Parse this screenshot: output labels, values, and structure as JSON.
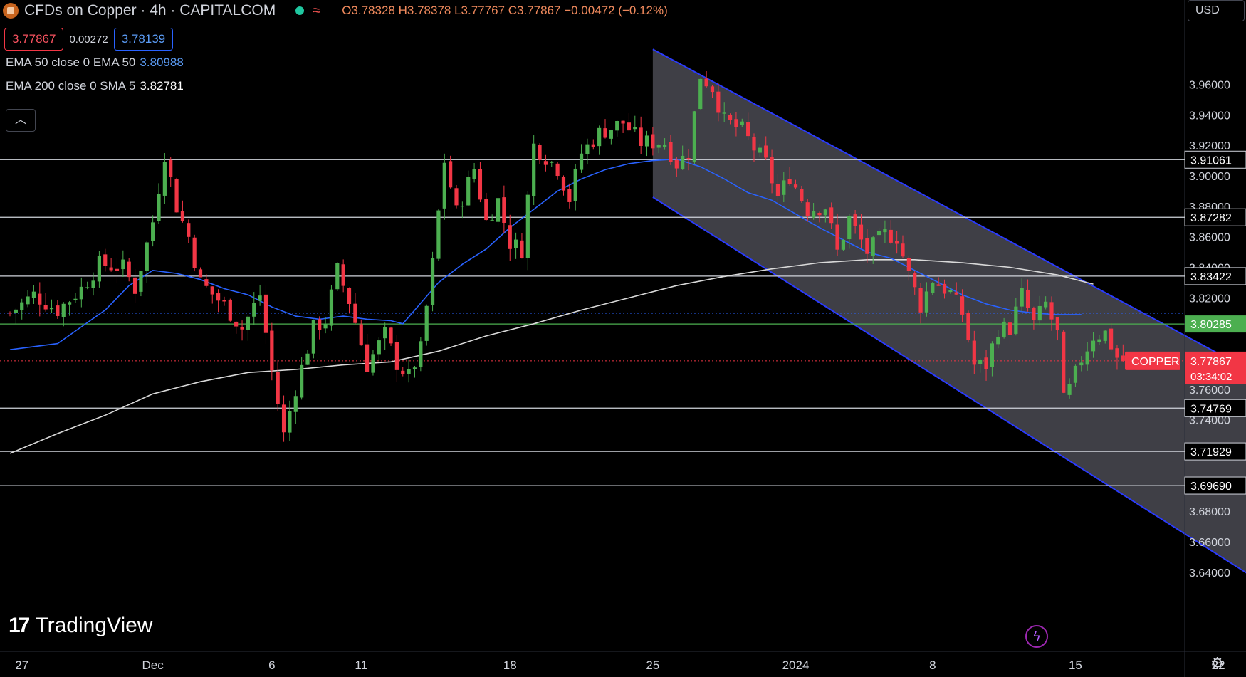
{
  "header": {
    "title": "CFDs on Copper · 4h · CAPITALCOM",
    "ohlc": {
      "open": "O3.78328",
      "high": "H3.78378",
      "low": "L3.77767",
      "close": "C3.77867",
      "change": "−0.00472 (−0.12%)"
    },
    "bid": "3.77867",
    "spread": "0.00272",
    "ask": "3.78139",
    "indicators": [
      {
        "label": "EMA 50 close 0 EMA 50",
        "value": "3.80988"
      },
      {
        "label": "EMA 200 close 0 SMA 5",
        "value": "3.82781"
      }
    ],
    "collapse_icon": "chevron-up-icon",
    "currency": "USD"
  },
  "branding": {
    "logo_mark": "17",
    "logo_text": "TradingView"
  },
  "icons": {
    "bolt": "lightning-icon",
    "settings": "gear-icon"
  },
  "colors": {
    "up": "#26a69a",
    "up_bright": "#4caf50",
    "down": "#f23645",
    "ema50": "#2962ff",
    "ema200": "#d9d9d9",
    "channel_fill": "#4a4a52",
    "channel_edge": "#2a3bff",
    "level_line": "#d1d4dc",
    "green_level": "#4caf50",
    "price_tag": "#f23645"
  },
  "chart_data": {
    "type": "candlestick",
    "timeframe": "4h",
    "ylim": [
      3.63,
      3.977
    ],
    "y_ticks": [
      "3.96000",
      "3.94000",
      "3.92000",
      "3.90000",
      "3.88000",
      "3.86000",
      "3.84000",
      "3.82000",
      "3.76000",
      "3.74000",
      "3.68000",
      "3.66000",
      "3.64000"
    ],
    "x_ticks": [
      {
        "label": "27",
        "bar": 2
      },
      {
        "label": "Dec",
        "bar": 24
      },
      {
        "label": "6",
        "bar": 44
      },
      {
        "label": "11",
        "bar": 59
      },
      {
        "label": "18",
        "bar": 84
      },
      {
        "label": "25",
        "bar": 108
      },
      {
        "label": "2024",
        "bar": 132
      },
      {
        "label": "8",
        "bar": 155
      },
      {
        "label": "15",
        "bar": 179
      },
      {
        "label": "22",
        "bar": 203
      }
    ],
    "total_bars": 211,
    "horizontal_levels": [
      {
        "value": 3.91061,
        "label": "3.91061"
      },
      {
        "value": 3.87282,
        "label": "3.87282"
      },
      {
        "value": 3.83422,
        "label": "3.83422"
      },
      {
        "value": 3.74769,
        "label": "3.74769"
      },
      {
        "value": 3.71929,
        "label": "3.71929"
      },
      {
        "value": 3.6969,
        "label": "3.69690"
      }
    ],
    "green_level": {
      "value": 3.80285,
      "label": "3.80285"
    },
    "dotted_levels": [
      3.80988,
      3.77867
    ],
    "last_price": {
      "value": 3.77867,
      "label": "3.77867",
      "countdown": "03:34:02",
      "symbol": "COPPER"
    },
    "channel": {
      "upper": [
        [
          108,
          3.983
        ],
        [
          208,
          3.773
        ]
      ],
      "lower": [
        [
          108,
          3.886
        ],
        [
          208,
          3.639
        ]
      ],
      "end_bar": 208
    },
    "anchors": [
      [
        0,
        3.81
      ],
      [
        4,
        3.822
      ],
      [
        8,
        3.812
      ],
      [
        12,
        3.826
      ],
      [
        15,
        3.842
      ],
      [
        19,
        3.84
      ],
      [
        21,
        3.826
      ],
      [
        24,
        3.87
      ],
      [
        26,
        3.915
      ],
      [
        28,
        3.88
      ],
      [
        30,
        3.86
      ],
      [
        32,
        3.83
      ],
      [
        36,
        3.815
      ],
      [
        39,
        3.8
      ],
      [
        42,
        3.822
      ],
      [
        44,
        3.772
      ],
      [
        46,
        3.73
      ],
      [
        48,
        3.761
      ],
      [
        51,
        3.8
      ],
      [
        53,
        3.805
      ],
      [
        55,
        3.838
      ],
      [
        57,
        3.818
      ],
      [
        60,
        3.776
      ],
      [
        63,
        3.796
      ],
      [
        65,
        3.777
      ],
      [
        67,
        3.768
      ],
      [
        69,
        3.786
      ],
      [
        71,
        3.842
      ],
      [
        73,
        3.91
      ],
      [
        75,
        3.876
      ],
      [
        78,
        3.905
      ],
      [
        80,
        3.87
      ],
      [
        82,
        3.884
      ],
      [
        84,
        3.856
      ],
      [
        86,
        3.852
      ],
      [
        88,
        3.92
      ],
      [
        92,
        3.905
      ],
      [
        94,
        3.885
      ],
      [
        96,
        3.915
      ],
      [
        99,
        3.928
      ],
      [
        103,
        3.935
      ],
      [
        106,
        3.922
      ],
      [
        110,
        3.922
      ],
      [
        112,
        3.908
      ],
      [
        114,
        3.915
      ],
      [
        116,
        3.966
      ],
      [
        118,
        3.958
      ],
      [
        120,
        3.936
      ],
      [
        123,
        3.93
      ],
      [
        125,
        3.918
      ],
      [
        127,
        3.908
      ],
      [
        129,
        3.886
      ],
      [
        131,
        3.9
      ],
      [
        134,
        3.878
      ],
      [
        137,
        3.88
      ],
      [
        139,
        3.85
      ],
      [
        141,
        3.872
      ],
      [
        144,
        3.85
      ],
      [
        147,
        3.862
      ],
      [
        149,
        3.86
      ],
      [
        151,
        3.835
      ],
      [
        153,
        3.815
      ],
      [
        155,
        3.832
      ],
      [
        158,
        3.823
      ],
      [
        160,
        3.81
      ],
      [
        162,
        3.776
      ],
      [
        164,
        3.776
      ],
      [
        166,
        3.8
      ],
      [
        168,
        3.8
      ],
      [
        170,
        3.822
      ],
      [
        172,
        3.803
      ],
      [
        174,
        3.816
      ],
      [
        176,
        3.796
      ],
      [
        177,
        3.752
      ],
      [
        178,
        3.76
      ],
      [
        180,
        3.78
      ],
      [
        182,
        3.795
      ],
      [
        184,
        3.797
      ],
      [
        186,
        3.781
      ],
      [
        187,
        3.779
      ]
    ],
    "ema50_points": [
      [
        0,
        3.786
      ],
      [
        8,
        3.79
      ],
      [
        16,
        3.812
      ],
      [
        20,
        3.828
      ],
      [
        24,
        3.838
      ],
      [
        28,
        3.836
      ],
      [
        32,
        3.832
      ],
      [
        36,
        3.826
      ],
      [
        40,
        3.822
      ],
      [
        44,
        3.814
      ],
      [
        48,
        3.808
      ],
      [
        52,
        3.806
      ],
      [
        56,
        3.808
      ],
      [
        60,
        3.806
      ],
      [
        64,
        3.805
      ],
      [
        66,
        3.803
      ],
      [
        68,
        3.812
      ],
      [
        72,
        3.83
      ],
      [
        76,
        3.842
      ],
      [
        80,
        3.852
      ],
      [
        84,
        3.866
      ],
      [
        88,
        3.878
      ],
      [
        92,
        3.89
      ],
      [
        96,
        3.898
      ],
      [
        100,
        3.904
      ],
      [
        104,
        3.908
      ],
      [
        108,
        3.91
      ],
      [
        112,
        3.911
      ],
      [
        116,
        3.906
      ],
      [
        120,
        3.898
      ],
      [
        124,
        3.889
      ],
      [
        128,
        3.884
      ],
      [
        132,
        3.875
      ],
      [
        136,
        3.866
      ],
      [
        140,
        3.858
      ],
      [
        144,
        3.85
      ],
      [
        148,
        3.846
      ],
      [
        152,
        3.838
      ],
      [
        156,
        3.83
      ],
      [
        160,
        3.822
      ],
      [
        164,
        3.816
      ],
      [
        168,
        3.812
      ],
      [
        172,
        3.81
      ],
      [
        176,
        3.809
      ],
      [
        180,
        3.809
      ]
    ],
    "ema200_points": [
      [
        0,
        3.718
      ],
      [
        8,
        3.731
      ],
      [
        16,
        3.743
      ],
      [
        24,
        3.757
      ],
      [
        32,
        3.765
      ],
      [
        40,
        3.771
      ],
      [
        48,
        3.773
      ],
      [
        56,
        3.776
      ],
      [
        64,
        3.778
      ],
      [
        72,
        3.785
      ],
      [
        80,
        3.795
      ],
      [
        88,
        3.803
      ],
      [
        96,
        3.812
      ],
      [
        104,
        3.82
      ],
      [
        112,
        3.828
      ],
      [
        120,
        3.834
      ],
      [
        128,
        3.839
      ],
      [
        136,
        3.843
      ],
      [
        144,
        3.845
      ],
      [
        152,
        3.845
      ],
      [
        160,
        3.843
      ],
      [
        168,
        3.84
      ],
      [
        176,
        3.835
      ],
      [
        182,
        3.829
      ]
    ]
  }
}
